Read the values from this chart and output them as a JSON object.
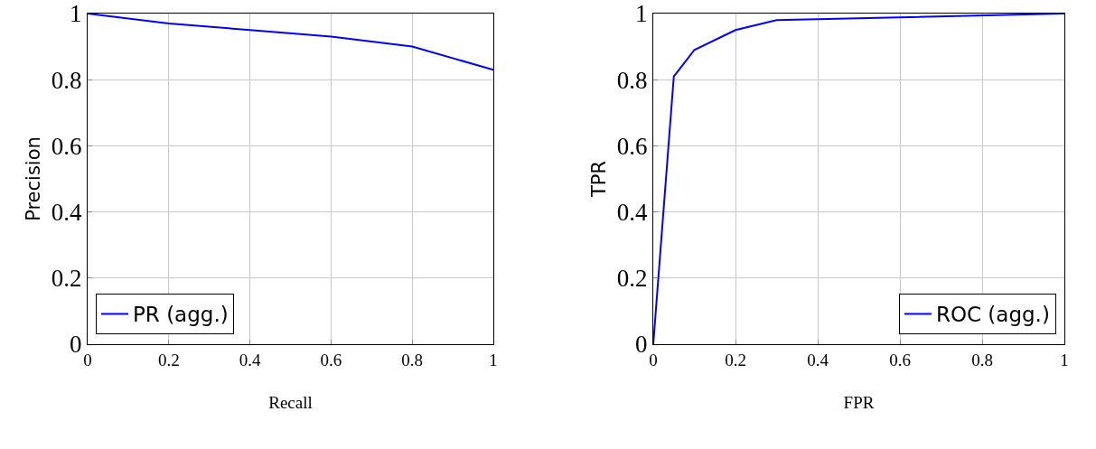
{
  "chart_data": [
    {
      "type": "line",
      "xlabel": "Recall",
      "ylabel": "Precision",
      "x": [
        0,
        0.2,
        0.4,
        0.6,
        0.8,
        1
      ],
      "series": [
        {
          "name": "PR (agg.)",
          "color": "#0000ff",
          "values": [
            1,
            0.97,
            0.95,
            0.93,
            0.9,
            0.83
          ]
        }
      ],
      "xlim": [
        0,
        1
      ],
      "ylim": [
        0,
        1
      ],
      "xticks": [
        0,
        0.2,
        0.4,
        0.6,
        0.8,
        1
      ],
      "yticks": [
        0,
        0.2,
        0.4,
        0.6,
        0.8,
        1
      ],
      "grid": true,
      "legend": "bottom left"
    },
    {
      "type": "line",
      "xlabel": "FPR",
      "ylabel": "TPR",
      "x": [
        0,
        0.05,
        0.1,
        0.2,
        0.3,
        1
      ],
      "series": [
        {
          "name": "ROC (agg.)",
          "color": "#0000ff",
          "values": [
            0,
            0.81,
            0.89,
            0.95,
            0.98,
            1
          ]
        }
      ],
      "xlim": [
        0,
        1
      ],
      "ylim": [
        0,
        1
      ],
      "xticks": [
        0,
        0.2,
        0.4,
        0.6,
        0.8,
        1
      ],
      "yticks": [
        0,
        0.2,
        0.4,
        0.6,
        0.8,
        1
      ],
      "grid": true,
      "legend": "bottom right"
    }
  ]
}
